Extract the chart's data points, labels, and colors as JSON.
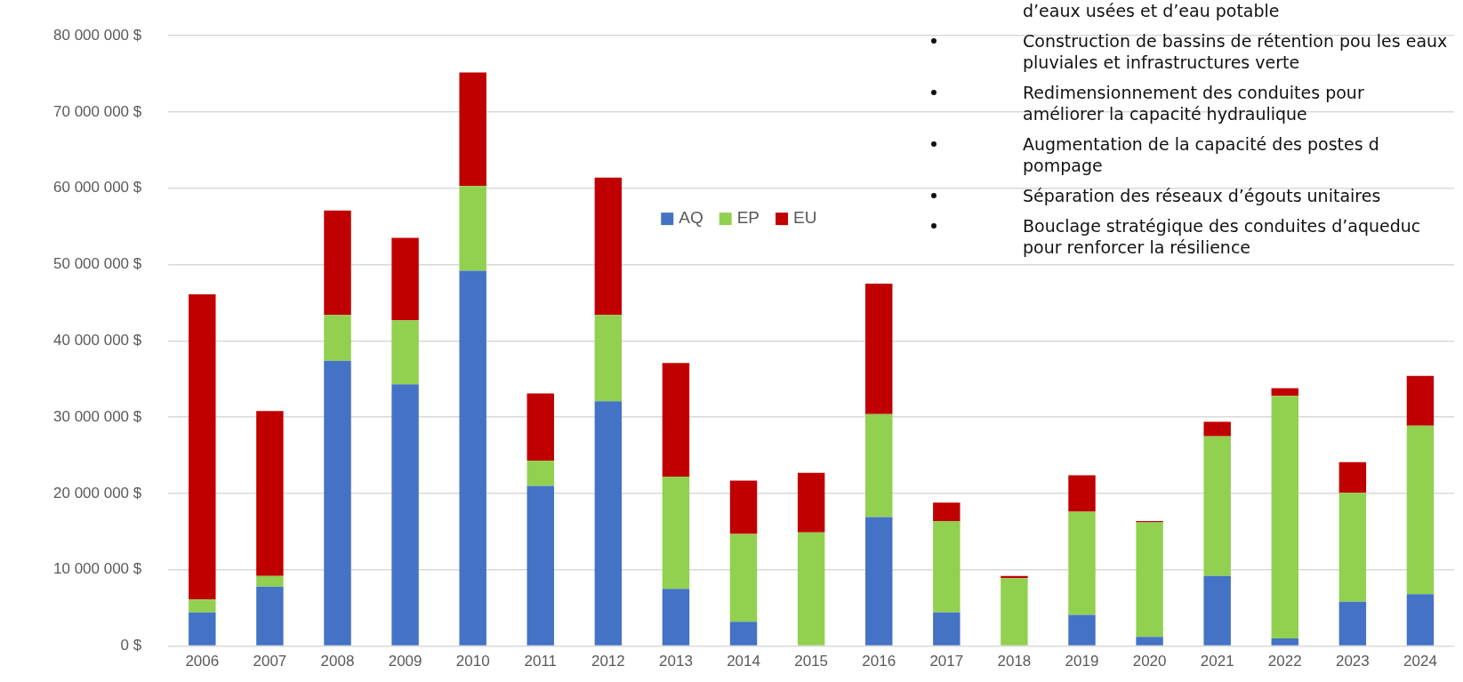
{
  "chart_data": {
    "type": "bar",
    "stacked": true,
    "grid": "y",
    "legend": "top",
    "categories": [
      "2006",
      "2007",
      "2008",
      "2009",
      "2010",
      "2011",
      "2012",
      "2013",
      "2014",
      "2015",
      "2016",
      "2017",
      "2018",
      "2019",
      "2020",
      "2021",
      "2022",
      "2023",
      "2024"
    ],
    "series": [
      {
        "name": "AQ",
        "color": "#4472c4",
        "values": [
          4400000,
          7800000,
          37400000,
          34300000,
          49200000,
          21000000,
          32100000,
          7500000,
          3200000,
          0,
          16900000,
          4400000,
          0,
          4100000,
          1200000,
          9200000,
          1000000,
          5800000,
          6800000
        ]
      },
      {
        "name": "EP",
        "color": "#92d050",
        "values": [
          1700000,
          1400000,
          6000000,
          8400000,
          11100000,
          3300000,
          11300000,
          14700000,
          11500000,
          14900000,
          13500000,
          12000000,
          8900000,
          13500000,
          15000000,
          18300000,
          31800000,
          14300000,
          22100000
        ]
      },
      {
        "name": "EU",
        "color": "#c00000",
        "values": [
          40000000,
          21600000,
          13700000,
          10800000,
          14900000,
          8800000,
          18000000,
          14900000,
          7000000,
          7800000,
          17100000,
          2400000,
          300000,
          4800000,
          200000,
          1900000,
          1000000,
          4000000,
          6500000
        ]
      }
    ],
    "ylim": [
      0,
      80000000
    ],
    "yticks": [
      {
        "value": 0,
        "label": "0 $"
      },
      {
        "value": 10000000,
        "label": "10 000 000 $"
      },
      {
        "value": 20000000,
        "label": "20 000 000 $"
      },
      {
        "value": 30000000,
        "label": "30 000 000 $"
      },
      {
        "value": 40000000,
        "label": "40 000 000 $"
      },
      {
        "value": 50000000,
        "label": "50 000 000 $"
      },
      {
        "value": 60000000,
        "label": "60 000 000 $"
      },
      {
        "value": 70000000,
        "label": "70 000 000 $"
      },
      {
        "value": 80000000,
        "label": "80 000 000 $"
      }
    ],
    "annotations": [
      "d’eaux usées et d’eau potable",
      "Construction de bassins de rétention pou les eaux pluviales et infrastructures verte",
      "Redimensionnement des conduites pour améliorer la capacité hydraulique",
      "Augmentation de la capacité des postes d pompage",
      "Séparation des réseaux d’égouts unitaires",
      "Bouclage stratégique des conduites d’aqueduc pour renforcer la résilience"
    ]
  }
}
